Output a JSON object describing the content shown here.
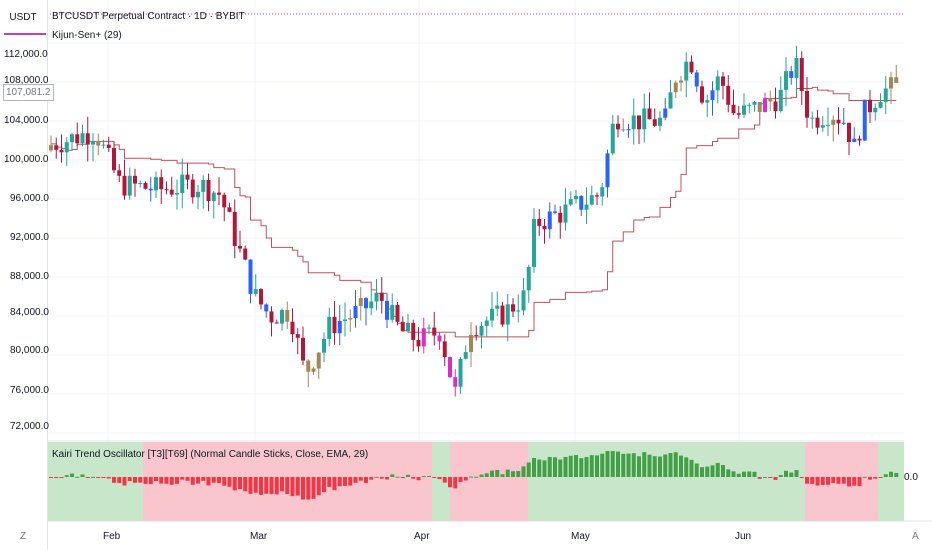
{
  "header": {
    "currency": "USDT",
    "title": "BTCUSDT Perpetual Contract · 1D · BYBIT",
    "indicator": "Kijun-Sen+ (29)"
  },
  "price_axis": {
    "labels": [
      "112,000.0",
      "108,000.0",
      "104,000.0",
      "100,000.0",
      "96,000.0",
      "92,000.0",
      "88,000.0",
      "84,000.0",
      "80,000.0",
      "76,000.0",
      "72,000.0"
    ],
    "current_price": "107,081.2"
  },
  "oscillator": {
    "title": "Kairi Trend Oscillator [T3][T69] (Normal Candle Sticks, Close, EMA, 29)",
    "zero_label": "0.0"
  },
  "time_axis": {
    "labels": [
      "Feb",
      "Mar",
      "Apr",
      "May",
      "Jun"
    ]
  },
  "corner": {
    "left": "Z",
    "right": "A"
  },
  "colors": {
    "bull": "#26a69a",
    "bear": "#b0173a",
    "blue": "#2962ff",
    "magenta": "#d92cc8",
    "tan": "#a08858",
    "kijun": "#c4505a",
    "osc_pos": "#43a047",
    "osc_neg": "#f23645",
    "bg_pos": "#c8e6c9",
    "bg_neg": "#f8c6cc"
  }
}
